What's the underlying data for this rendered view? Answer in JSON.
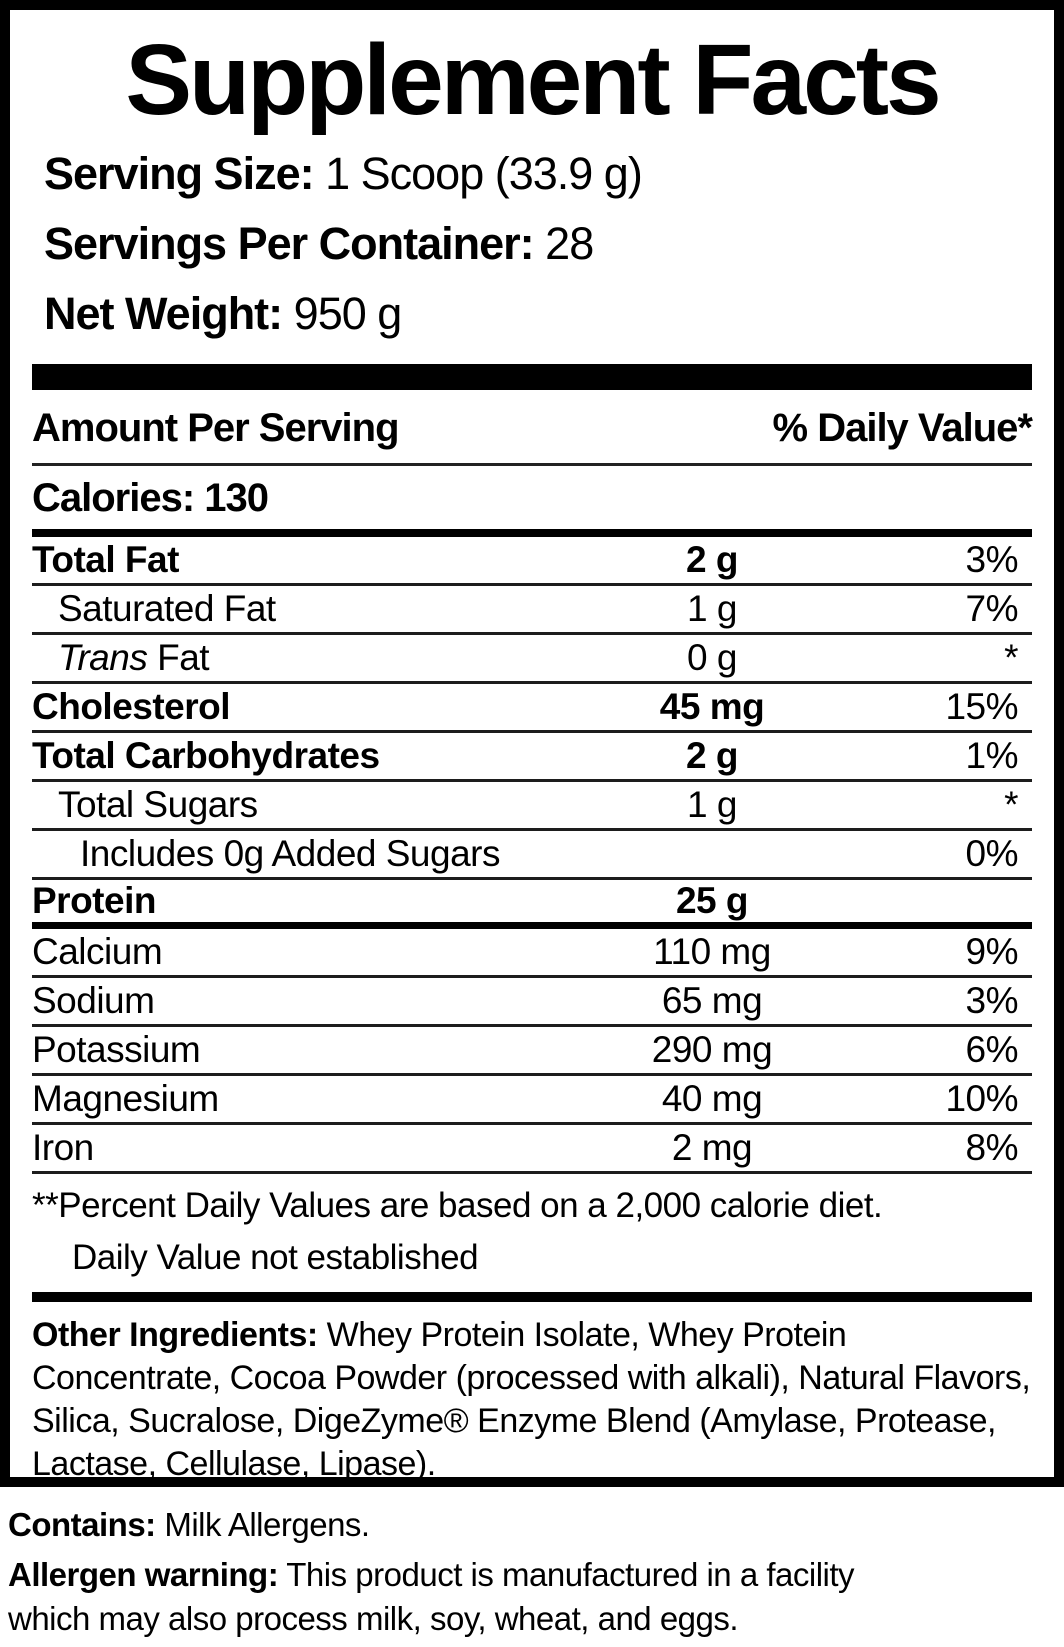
{
  "header": {
    "title": "Supplement Facts",
    "serving_size_label": "Serving Size:",
    "serving_size_value": "1 Scoop (33.9 g)",
    "servings_label": "Servings Per Container:",
    "servings_value": "28",
    "net_weight_label": "Net Weight:",
    "net_weight_value": "950 g"
  },
  "table": {
    "col_amount_header": "Amount Per Serving",
    "col_dv_header": "% Daily Value*",
    "calories_label": "Calories:",
    "calories_value": "130",
    "rows": [
      {
        "name": "Total Fat",
        "amount": "2 g",
        "dv": "3%",
        "bold": true,
        "indent": 0
      },
      {
        "name": "Saturated Fat",
        "amount": "1 g",
        "dv": "7%",
        "bold": false,
        "indent": 1
      },
      {
        "italic": "Trans ",
        "name": "Fat",
        "amount": "0 g",
        "dv": "*",
        "bold": false,
        "indent": 1
      },
      {
        "name": "Cholesterol",
        "amount": "45 mg",
        "dv": "15%",
        "bold": true,
        "indent": 0
      },
      {
        "name": "Total Carbohydrates",
        "amount": "2 g",
        "dv": "1%",
        "bold": true,
        "indent": 0
      },
      {
        "name": "Total Sugars",
        "amount": "1 g",
        "dv": "*",
        "bold": false,
        "indent": 1
      },
      {
        "name": "Includes 0g Added Sugars",
        "amount": "",
        "dv": "0%",
        "bold": false,
        "indent": 2
      },
      {
        "name": "Protein",
        "amount": "25 g",
        "dv": "",
        "bold": true,
        "indent": 0,
        "thick_after": true
      },
      {
        "name": "Calcium",
        "amount": "110 mg",
        "dv": "9%",
        "bold": false,
        "indent": 0
      },
      {
        "name": "Sodium",
        "amount": "65 mg",
        "dv": "3%",
        "bold": false,
        "indent": 0
      },
      {
        "name": "Potassium",
        "amount": "290 mg",
        "dv": "6%",
        "bold": false,
        "indent": 0
      },
      {
        "name": "Magnesium",
        "amount": "40 mg",
        "dv": "10%",
        "bold": false,
        "indent": 0
      },
      {
        "name": "Iron",
        "amount": "2 mg",
        "dv": "8%",
        "bold": false,
        "indent": 0
      }
    ],
    "footnote_primary": "**Percent Daily Values are based on a 2,000 calorie diet.",
    "footnote_secondary": "Daily Value not established"
  },
  "other_ingredients": {
    "label": "Other Ingredients:",
    "text": " Whey Protein Isolate, Whey Protein Concentrate, Cocoa Powder (processed with alkali), Natural Flavors, Silica, Sucralose, DigeZyme® Enzyme Blend (Amylase, Protease, Lactase, Cellulase, Lipase)."
  },
  "footer": {
    "contains_label": "Contains:",
    "contains_text": " Milk Allergens.",
    "allergen_label": "Allergen warning:",
    "allergen_text": " This product is manufactured in a facility which may also process milk, soy, wheat, and eggs."
  },
  "colors": {
    "text": "#000000",
    "background": "#ffffff",
    "border": "#000000"
  }
}
